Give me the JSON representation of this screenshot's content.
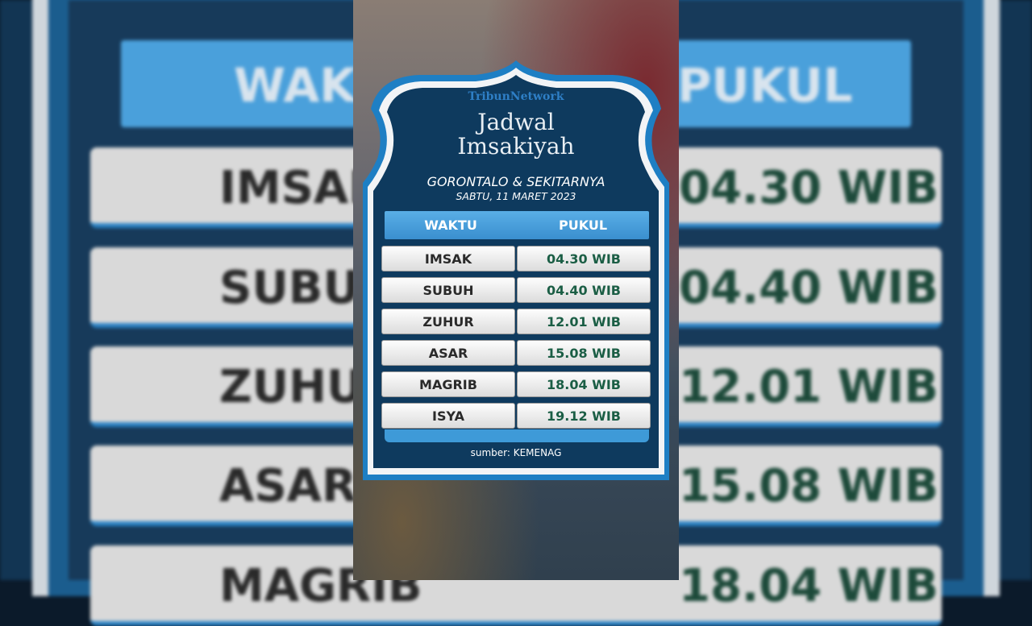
{
  "brand": "TribunNetwork",
  "title_line1": "Jadwal",
  "title_line2": "Imsakiyah",
  "location": "GORONTALO & SEKITARNYA",
  "date": "SABTU, 11 MARET 2023",
  "table": {
    "headers": [
      "WAKTU",
      "PUKUL"
    ],
    "rows": [
      {
        "name": "IMSAK",
        "time": "04.30 WIB"
      },
      {
        "name": "SUBUH",
        "time": "04.40 WIB"
      },
      {
        "name": "ZUHUR",
        "time": "12.01 WIB"
      },
      {
        "name": "ASAR",
        "time": "15.08 WIB"
      },
      {
        "name": "MAGRIB",
        "time": "18.04 WIB"
      },
      {
        "name": "ISYA",
        "time": "19.12 WIB"
      }
    ]
  },
  "source": "sumber: KEMENAG",
  "colors": {
    "navy": "#0e3a5e",
    "accent": "#3a9ad8",
    "time_green": "#1b5e45"
  }
}
